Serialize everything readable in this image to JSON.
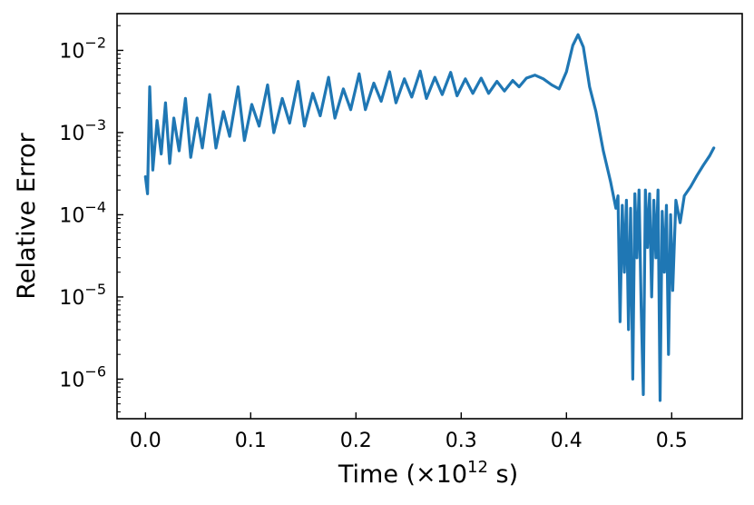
{
  "chart_data": {
    "type": "line",
    "title": "",
    "xlabel_main": "Time (×10",
    "xlabel_sup": "12",
    "xlabel_tail": " s)",
    "ylabel": "Relative Error",
    "yscale": "log",
    "xlim": [
      -0.027,
      0.567
    ],
    "ylim": [
      3.3e-07,
      0.028
    ],
    "grid": false,
    "legend": "none",
    "x_ticks": [
      {
        "v": 0.0,
        "label": "0.0"
      },
      {
        "v": 0.1,
        "label": "0.1"
      },
      {
        "v": 0.2,
        "label": "0.2"
      },
      {
        "v": 0.3,
        "label": "0.3"
      },
      {
        "v": 0.4,
        "label": "0.4"
      },
      {
        "v": 0.5,
        "label": "0.5"
      }
    ],
    "y_ticks": [
      {
        "v": 1e-06,
        "base": "10",
        "exp": "−6"
      },
      {
        "v": 1e-05,
        "base": "10",
        "exp": "−5"
      },
      {
        "v": 0.0001,
        "base": "10",
        "exp": "−4"
      },
      {
        "v": 0.001,
        "base": "10",
        "exp": "−3"
      },
      {
        "v": 0.01,
        "base": "10",
        "exp": "−2"
      }
    ],
    "series": [
      {
        "color": "#1f77b4",
        "points": [
          [
            0.0,
            0.00029
          ],
          [
            0.002,
            0.00018
          ],
          [
            0.004,
            0.0036
          ],
          [
            0.007,
            0.00035
          ],
          [
            0.011,
            0.0014
          ],
          [
            0.015,
            0.00055
          ],
          [
            0.019,
            0.0023
          ],
          [
            0.023,
            0.00042
          ],
          [
            0.027,
            0.0015
          ],
          [
            0.032,
            0.0006
          ],
          [
            0.038,
            0.0026
          ],
          [
            0.043,
            0.0005
          ],
          [
            0.049,
            0.0015
          ],
          [
            0.054,
            0.00065
          ],
          [
            0.061,
            0.0029
          ],
          [
            0.067,
            0.00065
          ],
          [
            0.074,
            0.0018
          ],
          [
            0.08,
            0.0009
          ],
          [
            0.088,
            0.0036
          ],
          [
            0.094,
            0.0008
          ],
          [
            0.101,
            0.0022
          ],
          [
            0.108,
            0.0012
          ],
          [
            0.116,
            0.0038
          ],
          [
            0.122,
            0.001
          ],
          [
            0.13,
            0.0026
          ],
          [
            0.137,
            0.0013
          ],
          [
            0.145,
            0.0042
          ],
          [
            0.151,
            0.0012
          ],
          [
            0.159,
            0.003
          ],
          [
            0.166,
            0.0016
          ],
          [
            0.174,
            0.0047
          ],
          [
            0.18,
            0.0015
          ],
          [
            0.188,
            0.0034
          ],
          [
            0.195,
            0.0019
          ],
          [
            0.203,
            0.0052
          ],
          [
            0.209,
            0.0019
          ],
          [
            0.217,
            0.004
          ],
          [
            0.224,
            0.0024
          ],
          [
            0.232,
            0.0055
          ],
          [
            0.238,
            0.0023
          ],
          [
            0.246,
            0.0045
          ],
          [
            0.253,
            0.0027
          ],
          [
            0.261,
            0.0056
          ],
          [
            0.267,
            0.0026
          ],
          [
            0.275,
            0.0047
          ],
          [
            0.282,
            0.0029
          ],
          [
            0.29,
            0.0054
          ],
          [
            0.296,
            0.0028
          ],
          [
            0.304,
            0.0045
          ],
          [
            0.311,
            0.003
          ],
          [
            0.319,
            0.0046
          ],
          [
            0.326,
            0.003
          ],
          [
            0.334,
            0.0042
          ],
          [
            0.341,
            0.0032
          ],
          [
            0.349,
            0.0043
          ],
          [
            0.355,
            0.0036
          ],
          [
            0.362,
            0.0046
          ],
          [
            0.37,
            0.005
          ],
          [
            0.378,
            0.0045
          ],
          [
            0.386,
            0.0038
          ],
          [
            0.393,
            0.0034
          ],
          [
            0.4,
            0.0055
          ],
          [
            0.406,
            0.0115
          ],
          [
            0.411,
            0.0155
          ],
          [
            0.416,
            0.011
          ],
          [
            0.422,
            0.0036
          ],
          [
            0.428,
            0.0018
          ],
          [
            0.435,
            0.0006
          ],
          [
            0.442,
            0.00025
          ],
          [
            0.447,
            0.00012
          ],
          [
            0.449,
            0.00017
          ],
          [
            0.451,
            5e-06
          ],
          [
            0.453,
            0.00013
          ],
          [
            0.455,
            2e-05
          ],
          [
            0.457,
            0.00015
          ],
          [
            0.459,
            4e-06
          ],
          [
            0.461,
            0.00012
          ],
          [
            0.463,
            1e-06
          ],
          [
            0.465,
            0.00018
          ],
          [
            0.467,
            3e-05
          ],
          [
            0.469,
            0.0002
          ],
          [
            0.471,
            8e-06
          ],
          [
            0.473,
            6.5e-07
          ],
          [
            0.475,
            0.0002
          ],
          [
            0.477,
            4e-05
          ],
          [
            0.479,
            0.00018
          ],
          [
            0.481,
            1e-05
          ],
          [
            0.483,
            0.00015
          ],
          [
            0.485,
            3e-05
          ],
          [
            0.487,
            0.0002
          ],
          [
            0.489,
            5.5e-07
          ],
          [
            0.491,
            0.00011
          ],
          [
            0.493,
            2e-05
          ],
          [
            0.495,
            0.00013
          ],
          [
            0.497,
            2e-06
          ],
          [
            0.499,
            0.0001
          ],
          [
            0.501,
            1.2e-05
          ],
          [
            0.504,
            0.00015
          ],
          [
            0.508,
            8e-05
          ],
          [
            0.512,
            0.00017
          ],
          [
            0.518,
            0.00022
          ],
          [
            0.524,
            0.0003
          ],
          [
            0.53,
            0.0004
          ],
          [
            0.536,
            0.00052
          ],
          [
            0.54,
            0.00065
          ]
        ]
      }
    ]
  }
}
